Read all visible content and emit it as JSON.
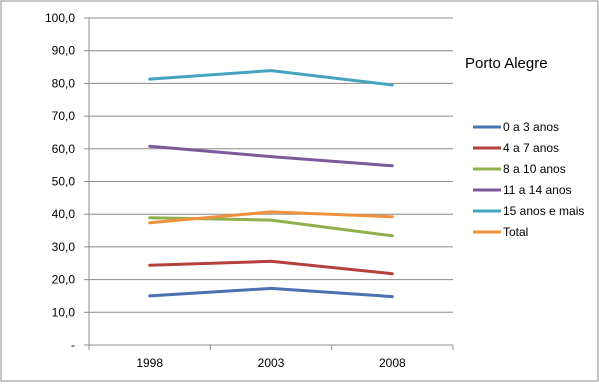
{
  "chart_data": {
    "type": "line",
    "title": "Porto Alegre",
    "xlabel": "",
    "ylabel": "",
    "categories": [
      "1998",
      "2003",
      "2008"
    ],
    "y_ticks": [
      "-",
      "10,0",
      "20,0",
      "30,0",
      "40,0",
      "50,0",
      "60,0",
      "70,0",
      "80,0",
      "90,0",
      "100,0"
    ],
    "ylim": [
      0,
      100
    ],
    "grid": "horizontal",
    "legend_position": "right",
    "series": [
      {
        "name": "0 a 3 anos",
        "color": "#4a72b0",
        "values": [
          15.0,
          17.3,
          14.8
        ]
      },
      {
        "name": "4 a 7 anos",
        "color": "#b5413d",
        "values": [
          24.4,
          25.6,
          21.8
        ]
      },
      {
        "name": "8 a 10 anos",
        "color": "#8fb04d",
        "values": [
          38.9,
          38.2,
          33.4
        ]
      },
      {
        "name": "11 a 14 anos",
        "color": "#7b5a9c",
        "values": [
          60.8,
          57.6,
          54.8
        ]
      },
      {
        "name": "15 anos e mais",
        "color": "#46a3bf",
        "values": [
          81.3,
          83.9,
          79.5
        ]
      },
      {
        "name": "Total",
        "color": "#f0913e",
        "values": [
          37.4,
          40.7,
          39.2
        ]
      }
    ]
  }
}
